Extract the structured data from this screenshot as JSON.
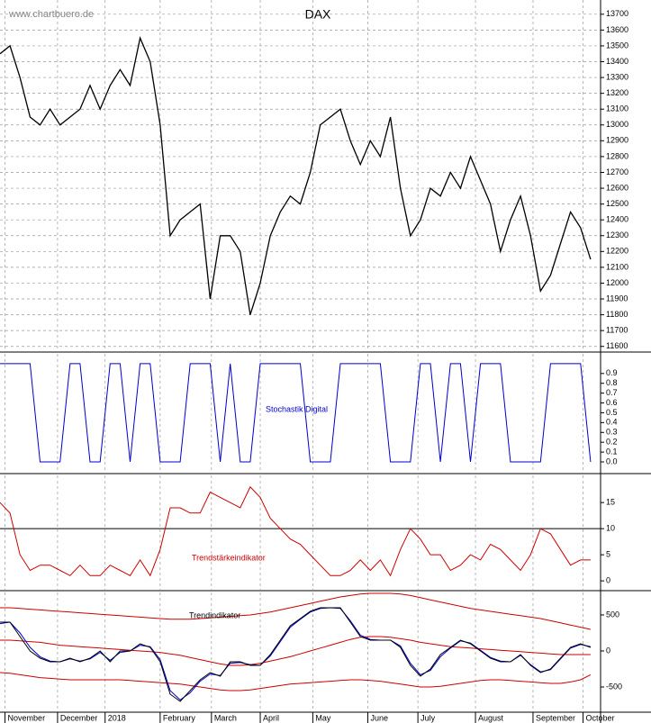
{
  "chart_data": [
    {
      "type": "line",
      "title": "DAX",
      "source": "www.chartbuero.de",
      "x": [
        0,
        4,
        8,
        12,
        16,
        20,
        24,
        28,
        32,
        36,
        40,
        44,
        48,
        52,
        56,
        60,
        64,
        68,
        72,
        76,
        80,
        84,
        88,
        92,
        96,
        100,
        104,
        108,
        112,
        116,
        120,
        124,
        128,
        132,
        136,
        140,
        144,
        148,
        152,
        156,
        160,
        164,
        168,
        172,
        176,
        180,
        184,
        188,
        192,
        196,
        200,
        204,
        208,
        212,
        216,
        220,
        224,
        228,
        232,
        236
      ],
      "xlim": [
        0,
        240
      ],
      "series": [
        {
          "color": "#000000",
          "values": [
            13450,
            13500,
            13300,
            13050,
            13000,
            13100,
            13000,
            13050,
            13100,
            13250,
            13100,
            13250,
            13350,
            13250,
            13550,
            13400,
            13000,
            12300,
            12400,
            12450,
            12500,
            11900,
            12300,
            12300,
            12200,
            11800,
            12000,
            12300,
            12450,
            12550,
            12500,
            12700,
            13000,
            13050,
            13100,
            12900,
            12750,
            12900,
            12800,
            13050,
            12600,
            12300,
            12400,
            12600,
            12550,
            12700,
            12600,
            12800,
            12650,
            12500,
            12200,
            12400,
            12550,
            12300,
            11950,
            12050,
            12250,
            12450,
            12350,
            12150
          ]
        }
      ],
      "ylim": [
        11570,
        13790
      ],
      "yticks": [
        11600,
        11700,
        11800,
        11900,
        12000,
        12100,
        12200,
        12300,
        12400,
        12500,
        12600,
        12700,
        12800,
        12900,
        13000,
        13100,
        13200,
        13300,
        13400,
        13500,
        13600,
        13700
      ],
      "grid": true
    },
    {
      "type": "line",
      "label": "Stochastik Digital",
      "x": [
        0,
        4,
        8,
        12,
        16,
        20,
        24,
        28,
        32,
        36,
        40,
        44,
        48,
        52,
        56,
        60,
        64,
        68,
        72,
        76,
        80,
        84,
        88,
        92,
        96,
        100,
        104,
        108,
        112,
        116,
        120,
        124,
        128,
        132,
        136,
        140,
        144,
        148,
        152,
        156,
        160,
        164,
        168,
        172,
        176,
        180,
        184,
        188,
        192,
        196,
        200,
        204,
        208,
        212,
        216,
        220,
        224,
        228,
        232,
        236
      ],
      "xlim": [
        0,
        240
      ],
      "series": [
        {
          "color": "#0000cc",
          "values": [
            1,
            1,
            1,
            1,
            0,
            0,
            0,
            1,
            1,
            0,
            0,
            1,
            1,
            0,
            1,
            1,
            0,
            0,
            0,
            1,
            1,
            1,
            0,
            1,
            0,
            0,
            1,
            1,
            1,
            1,
            1,
            0,
            0,
            0,
            1,
            1,
            1,
            1,
            1,
            0,
            0,
            0,
            1,
            1,
            0,
            1,
            1,
            0,
            1,
            1,
            1,
            0,
            0,
            0,
            0,
            1,
            1,
            1,
            1,
            0
          ]
        }
      ],
      "ylim": [
        -0.11,
        1.1
      ],
      "yticks": [
        {
          "value": 0,
          "label": "0.0"
        },
        0.1,
        0.2,
        0.3,
        0.4,
        0.5,
        0.6,
        0.7,
        0.8,
        0.9
      ],
      "grid": false
    },
    {
      "type": "line",
      "label": "Trendstärkeindikator",
      "x": [
        0,
        4,
        8,
        12,
        16,
        20,
        24,
        28,
        32,
        36,
        40,
        44,
        48,
        52,
        56,
        60,
        64,
        68,
        72,
        76,
        80,
        84,
        88,
        92,
        96,
        100,
        104,
        108,
        112,
        116,
        120,
        124,
        128,
        132,
        136,
        140,
        144,
        148,
        152,
        156,
        160,
        164,
        168,
        172,
        176,
        180,
        184,
        188,
        192,
        196,
        200,
        204,
        208,
        212,
        216,
        220,
        224,
        228,
        232,
        236
      ],
      "xlim": [
        0,
        240
      ],
      "series": [
        {
          "color": "#cc0000",
          "values": [
            15,
            13,
            5,
            2,
            3,
            3,
            2,
            1,
            3,
            1,
            1,
            3,
            2,
            1,
            4,
            1,
            6,
            14,
            14,
            13,
            13,
            17,
            16,
            15,
            14,
            18,
            16,
            12,
            10,
            8,
            7,
            5,
            3,
            1,
            1,
            2,
            4,
            2,
            4,
            1,
            6,
            10,
            8,
            5,
            5,
            2,
            3,
            5,
            4,
            7,
            6,
            4,
            2,
            5,
            10,
            9,
            6,
            3,
            4,
            4
          ]
        }
      ],
      "reference_line": 10,
      "ylim": [
        -1.7,
        20.2
      ],
      "yticks": [
        0,
        5,
        10,
        15
      ],
      "grid": false
    },
    {
      "type": "line",
      "label": "Trendindikator",
      "x": [
        0,
        4,
        8,
        12,
        16,
        20,
        24,
        28,
        32,
        36,
        40,
        44,
        48,
        52,
        56,
        60,
        64,
        68,
        72,
        76,
        80,
        84,
        88,
        92,
        96,
        100,
        104,
        108,
        112,
        116,
        120,
        124,
        128,
        132,
        136,
        140,
        144,
        148,
        152,
        156,
        160,
        164,
        168,
        172,
        176,
        180,
        184,
        188,
        192,
        196,
        200,
        204,
        208,
        212,
        216,
        220,
        224,
        228,
        232,
        236
      ],
      "xlim": [
        0,
        240
      ],
      "series": [
        {
          "color": "#cc0000",
          "values": [
            600,
            600,
            590,
            580,
            570,
            560,
            550,
            540,
            530,
            520,
            510,
            500,
            490,
            480,
            470,
            460,
            450,
            440,
            440,
            440,
            450,
            460,
            470,
            480,
            490,
            500,
            520,
            540,
            570,
            600,
            630,
            660,
            690,
            720,
            750,
            770,
            790,
            800,
            800,
            800,
            790,
            770,
            740,
            710,
            680,
            650,
            620,
            590,
            570,
            550,
            530,
            510,
            490,
            470,
            450,
            420,
            390,
            360,
            330,
            300
          ]
        },
        {
          "color": "#cc0000",
          "values": [
            150,
            150,
            140,
            130,
            120,
            100,
            80,
            70,
            60,
            50,
            40,
            30,
            20,
            10,
            0,
            -10,
            -20,
            -40,
            -60,
            -90,
            -120,
            -150,
            -180,
            -200,
            -200,
            -190,
            -170,
            -140,
            -110,
            -80,
            -40,
            0,
            40,
            80,
            120,
            160,
            190,
            200,
            200,
            190,
            170,
            150,
            120,
            100,
            80,
            60,
            50,
            40,
            30,
            20,
            10,
            0,
            -10,
            -20,
            -30,
            -40,
            -50,
            -50,
            -50,
            -50
          ]
        },
        {
          "color": "#cc0000",
          "values": [
            -300,
            -310,
            -330,
            -350,
            -370,
            -380,
            -390,
            -400,
            -400,
            -400,
            -400,
            -400,
            -400,
            -410,
            -420,
            -430,
            -440,
            -450,
            -460,
            -480,
            -500,
            -520,
            -540,
            -550,
            -550,
            -540,
            -520,
            -500,
            -480,
            -460,
            -450,
            -440,
            -430,
            -420,
            -410,
            -400,
            -400,
            -410,
            -420,
            -440,
            -460,
            -480,
            -500,
            -500,
            -490,
            -470,
            -450,
            -430,
            -410,
            -400,
            -400,
            -410,
            -420,
            -430,
            -440,
            -450,
            -450,
            -430,
            -400,
            -330
          ]
        },
        {
          "color": "#0000cc",
          "values": [
            380,
            400,
            250,
            50,
            -80,
            -140,
            -150,
            -110,
            -140,
            -110,
            -20,
            -130,
            -20,
            0,
            80,
            60,
            -120,
            -550,
            -680,
            -580,
            -420,
            -320,
            -340,
            -170,
            -160,
            -190,
            -200,
            -70,
            130,
            330,
            440,
            540,
            590,
            600,
            590,
            420,
            220,
            160,
            150,
            150,
            70,
            -170,
            -330,
            -270,
            -80,
            40,
            140,
            110,
            10,
            -90,
            -140,
            -150,
            -60,
            -190,
            -290,
            -260,
            -110,
            40,
            90,
            60
          ]
        },
        {
          "color": "#000000",
          "values": [
            400,
            400,
            200,
            0,
            -100,
            -150,
            -150,
            -100,
            -150,
            -100,
            0,
            -150,
            0,
            0,
            100,
            50,
            -150,
            -600,
            -700,
            -550,
            -400,
            -300,
            -350,
            -150,
            -150,
            -200,
            -200,
            -50,
            150,
            350,
            450,
            550,
            600,
            600,
            600,
            400,
            200,
            150,
            150,
            150,
            50,
            -200,
            -350,
            -250,
            -50,
            50,
            150,
            100,
            0,
            -100,
            -150,
            -150,
            -50,
            -200,
            -300,
            -250,
            -100,
            50,
            100,
            50
          ]
        }
      ],
      "ylim": [
        -837,
        812
      ],
      "yticks": [
        -500,
        0,
        500
      ],
      "xticks": [
        {
          "value": 2,
          "label": "November"
        },
        {
          "value": 23,
          "label": "December"
        },
        {
          "value": 42,
          "label": "2018"
        },
        {
          "value": 64,
          "label": "February"
        },
        {
          "value": 84.5,
          "label": "March"
        },
        {
          "value": 104,
          "label": "April"
        },
        {
          "value": 125,
          "label": "May"
        },
        {
          "value": 147,
          "label": "June"
        },
        {
          "value": 167,
          "label": "July"
        },
        {
          "value": 190,
          "label": "August"
        },
        {
          "value": 213,
          "label": "September"
        },
        {
          "value": 233,
          "label": "October"
        }
      ],
      "grid": false
    }
  ]
}
